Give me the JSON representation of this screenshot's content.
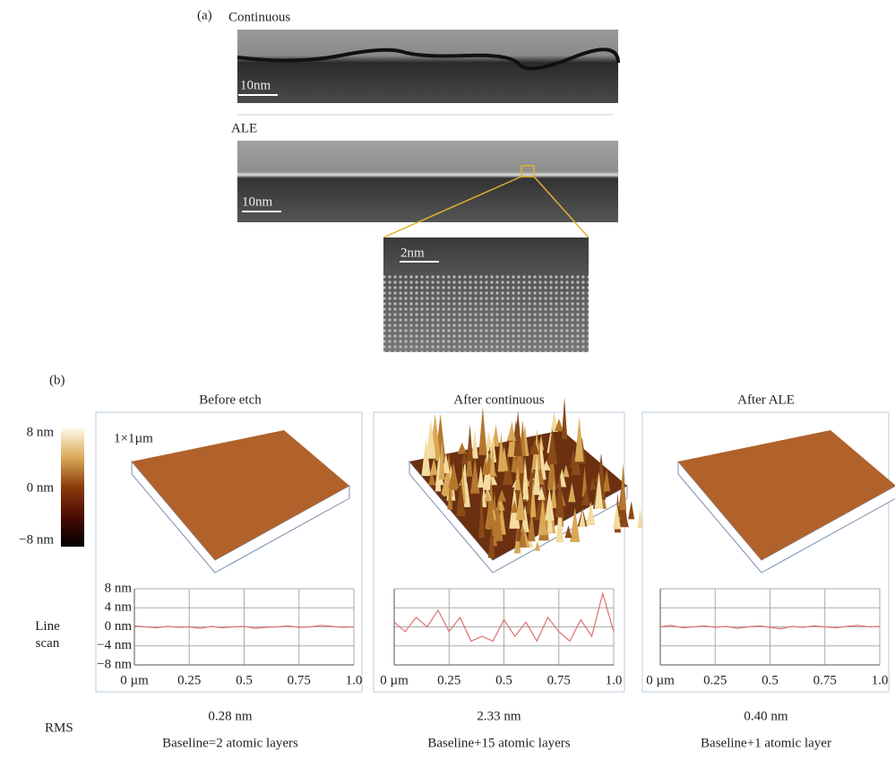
{
  "panel_a": {
    "label": "(a)",
    "continuous": {
      "title": "Continuous",
      "scale": "10nm"
    },
    "ale": {
      "title": "ALE",
      "scale": "10nm"
    },
    "zoom_scale": "2nm"
  },
  "panel_b": {
    "label": "(b)",
    "colorbar_labels": [
      "8 nm",
      "0 nm",
      "−8 nm"
    ],
    "size_label": "1×1µm",
    "line_scan_label": "Line scan",
    "rms_label": "RMS",
    "samples": [
      {
        "title": "Before etch",
        "rms": "0.28 nm",
        "baseline": "Baseline=2 atomic layers"
      },
      {
        "title": "After continuous",
        "rms": "2.33 nm",
        "baseline": "Baseline+15 atomic layers"
      },
      {
        "title": "After ALE",
        "rms": "0.40 nm",
        "baseline": "Baseline+1 atomic layer"
      }
    ]
  },
  "chart_data": [
    {
      "type": "line",
      "xlim": [
        0,
        1
      ],
      "ylim": [
        -8,
        8
      ],
      "grid": true,
      "ytick_labels": true,
      "yticks": [
        {
          "value": 8,
          "label": "8 nm"
        },
        {
          "value": 4,
          "label": "4 nm"
        },
        {
          "value": 0,
          "label": "0 nm"
        },
        {
          "value": -4,
          "label": "−4 nm"
        },
        {
          "value": -8,
          "label": "−8 nm"
        }
      ],
      "xticks": [
        {
          "value": 0,
          "label": "0 µm"
        },
        0.25,
        0.5,
        0.75,
        {
          "value": 1,
          "label": "1.0"
        }
      ],
      "x": [
        0,
        0.05,
        0.1,
        0.15,
        0.2,
        0.25,
        0.3,
        0.35,
        0.4,
        0.45,
        0.5,
        0.55,
        0.6,
        0.65,
        0.7,
        0.75,
        0.8,
        0.85,
        0.9,
        0.95,
        1
      ],
      "series": [
        {
          "color": "#e07070",
          "values": [
            0.2,
            0,
            -0.2,
            0.1,
            -0.1,
            0,
            -0.3,
            0.1,
            -0.2,
            0,
            0.1,
            -0.3,
            -0.1,
            0,
            0.2,
            -0.1,
            0,
            0.3,
            0.1,
            -0.1,
            0
          ]
        }
      ]
    },
    {
      "type": "line",
      "xlim": [
        0,
        1
      ],
      "ylim": [
        -8,
        8
      ],
      "grid": true,
      "ytick_labels": false,
      "yticks": [
        8,
        4,
        0,
        -4,
        -8
      ],
      "xticks": [
        {
          "value": 0,
          "label": "0 µm"
        },
        0.25,
        0.5,
        0.75,
        {
          "value": 1,
          "label": "1.0"
        }
      ],
      "x": [
        0,
        0.05,
        0.1,
        0.15,
        0.2,
        0.25,
        0.3,
        0.35,
        0.4,
        0.45,
        0.5,
        0.55,
        0.6,
        0.65,
        0.7,
        0.75,
        0.8,
        0.85,
        0.9,
        0.95,
        1
      ],
      "series": [
        {
          "color": "#e07070",
          "values": [
            1,
            -1,
            2,
            0,
            3.5,
            -1,
            2,
            -3,
            -2,
            -3,
            1.5,
            -2,
            1,
            -3,
            2,
            -1,
            -3,
            1.5,
            -2,
            7,
            -1
          ]
        }
      ]
    },
    {
      "type": "line",
      "xlim": [
        0,
        1
      ],
      "ylim": [
        -8,
        8
      ],
      "grid": true,
      "ytick_labels": false,
      "yticks": [
        8,
        4,
        0,
        -4,
        -8
      ],
      "xticks": [
        {
          "value": 0,
          "label": "0 µm"
        },
        0.25,
        0.5,
        0.75,
        {
          "value": 1,
          "label": "1.0"
        }
      ],
      "x": [
        0,
        0.05,
        0.1,
        0.15,
        0.2,
        0.25,
        0.3,
        0.35,
        0.4,
        0.45,
        0.5,
        0.55,
        0.6,
        0.65,
        0.7,
        0.75,
        0.8,
        0.85,
        0.9,
        0.95,
        1
      ],
      "series": [
        {
          "color": "#e07070",
          "values": [
            0,
            0.3,
            -0.2,
            0,
            0.2,
            -0.1,
            0.1,
            -0.3,
            0,
            0.2,
            -0.1,
            -0.4,
            0.1,
            -0.1,
            0.2,
            0,
            -0.2,
            0.1,
            0.3,
            0,
            0.1
          ]
        }
      ]
    }
  ]
}
